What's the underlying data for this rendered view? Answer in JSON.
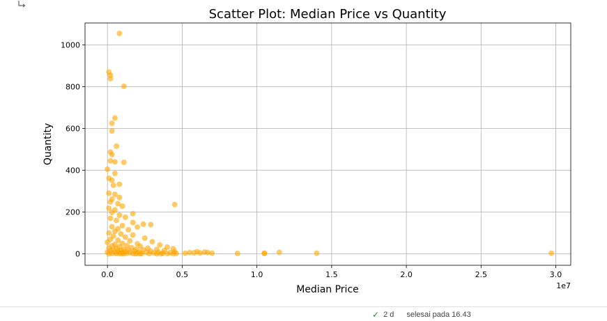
{
  "icons": {
    "output": "output-arrow-icon",
    "status": "check-icon"
  },
  "status": {
    "check": "✓",
    "duration": "2 d",
    "finished": "selesai pada 16.43"
  },
  "colors": {
    "point": "#FFA500",
    "grid": "#b0b0b0",
    "axis": "#000000"
  },
  "chart_data": {
    "type": "scatter",
    "title": "Scatter Plot: Median Price vs Quantity",
    "xlabel": "Median Price",
    "ylabel": "Quantity",
    "x_offset_text": "1e7",
    "xlim": [
      -0.15,
      3.1
    ],
    "ylim": [
      -55,
      1105
    ],
    "xticks": [
      0.0,
      0.5,
      1.0,
      1.5,
      2.0,
      2.5,
      3.0
    ],
    "xtick_labels": [
      "0.0",
      "0.5",
      "1.0",
      "1.5",
      "2.0",
      "2.5",
      "3.0"
    ],
    "yticks": [
      0,
      200,
      400,
      600,
      800,
      1000
    ],
    "ytick_labels": [
      "0",
      "200",
      "400",
      "600",
      "800",
      "1000"
    ],
    "grid": true,
    "alpha": 0.6,
    "points": [
      {
        "x": 0.08,
        "y": 1055
      },
      {
        "x": 0.01,
        "y": 870
      },
      {
        "x": 0.02,
        "y": 855
      },
      {
        "x": 0.02,
        "y": 838
      },
      {
        "x": 0.11,
        "y": 802
      },
      {
        "x": 0.05,
        "y": 650
      },
      {
        "x": 0.03,
        "y": 625
      },
      {
        "x": 0.03,
        "y": 588
      },
      {
        "x": 0.06,
        "y": 515
      },
      {
        "x": 0.02,
        "y": 487
      },
      {
        "x": 0.03,
        "y": 475
      },
      {
        "x": 0.02,
        "y": 445
      },
      {
        "x": 0.05,
        "y": 440
      },
      {
        "x": 0.11,
        "y": 438
      },
      {
        "x": 0.0,
        "y": 405
      },
      {
        "x": 0.05,
        "y": 385
      },
      {
        "x": 0.01,
        "y": 362
      },
      {
        "x": 0.03,
        "y": 352
      },
      {
        "x": 0.08,
        "y": 333
      },
      {
        "x": 0.04,
        "y": 328
      },
      {
        "x": 0.01,
        "y": 290
      },
      {
        "x": 0.05,
        "y": 285
      },
      {
        "x": 0.08,
        "y": 270
      },
      {
        "x": 0.03,
        "y": 262
      },
      {
        "x": 0.02,
        "y": 248
      },
      {
        "x": 0.07,
        "y": 240
      },
      {
        "x": 0.45,
        "y": 236
      },
      {
        "x": 0.1,
        "y": 228
      },
      {
        "x": 0.01,
        "y": 218
      },
      {
        "x": 0.05,
        "y": 210
      },
      {
        "x": 0.03,
        "y": 198
      },
      {
        "x": 0.17,
        "y": 192
      },
      {
        "x": 0.08,
        "y": 185
      },
      {
        "x": 0.12,
        "y": 175
      },
      {
        "x": 0.02,
        "y": 170
      },
      {
        "x": 0.06,
        "y": 160
      },
      {
        "x": 0.17,
        "y": 150
      },
      {
        "x": 0.24,
        "y": 142
      },
      {
        "x": 0.29,
        "y": 140
      },
      {
        "x": 0.1,
        "y": 135
      },
      {
        "x": 0.03,
        "y": 130
      },
      {
        "x": 0.2,
        "y": 128
      },
      {
        "x": 0.07,
        "y": 120
      },
      {
        "x": 0.14,
        "y": 115
      },
      {
        "x": 0.05,
        "y": 108
      },
      {
        "x": 0.01,
        "y": 100
      },
      {
        "x": 0.09,
        "y": 95
      },
      {
        "x": 0.17,
        "y": 90
      },
      {
        "x": 0.04,
        "y": 85
      },
      {
        "x": 0.12,
        "y": 80
      },
      {
        "x": 0.25,
        "y": 75
      },
      {
        "x": 0.02,
        "y": 70
      },
      {
        "x": 0.07,
        "y": 65
      },
      {
        "x": 0.15,
        "y": 62
      },
      {
        "x": 0.3,
        "y": 58
      },
      {
        "x": 0.0,
        "y": 55
      },
      {
        "x": 0.1,
        "y": 50
      },
      {
        "x": 0.2,
        "y": 48
      },
      {
        "x": 0.05,
        "y": 45
      },
      {
        "x": 0.35,
        "y": 42
      },
      {
        "x": 0.13,
        "y": 40
      },
      {
        "x": 0.03,
        "y": 38
      },
      {
        "x": 0.22,
        "y": 36
      },
      {
        "x": 0.08,
        "y": 34
      },
      {
        "x": 0.4,
        "y": 32
      },
      {
        "x": 0.16,
        "y": 30
      },
      {
        "x": 0.01,
        "y": 28
      },
      {
        "x": 0.27,
        "y": 27
      },
      {
        "x": 0.06,
        "y": 26
      },
      {
        "x": 0.44,
        "y": 24
      },
      {
        "x": 0.11,
        "y": 23
      },
      {
        "x": 0.19,
        "y": 22
      },
      {
        "x": 0.33,
        "y": 21
      },
      {
        "x": 0.04,
        "y": 20
      },
      {
        "x": 0.24,
        "y": 19
      },
      {
        "x": 0.14,
        "y": 18
      },
      {
        "x": 0.09,
        "y": 17
      },
      {
        "x": 0.38,
        "y": 16
      },
      {
        "x": 0.02,
        "y": 15
      },
      {
        "x": 0.18,
        "y": 14
      },
      {
        "x": 0.29,
        "y": 13
      },
      {
        "x": 0.07,
        "y": 12
      },
      {
        "x": 0.12,
        "y": 11
      },
      {
        "x": 0.45,
        "y": 10
      },
      {
        "x": 0.21,
        "y": 9
      },
      {
        "x": 0.0,
        "y": 8
      },
      {
        "x": 0.34,
        "y": 8
      },
      {
        "x": 0.1,
        "y": 7
      },
      {
        "x": 0.26,
        "y": 7
      },
      {
        "x": 0.15,
        "y": 6
      },
      {
        "x": 0.05,
        "y": 6
      },
      {
        "x": 0.42,
        "y": 5
      },
      {
        "x": 0.31,
        "y": 5
      },
      {
        "x": 0.2,
        "y": 4
      },
      {
        "x": 0.08,
        "y": 4
      },
      {
        "x": 0.37,
        "y": 3
      },
      {
        "x": 0.13,
        "y": 3
      },
      {
        "x": 0.03,
        "y": 2
      },
      {
        "x": 0.23,
        "y": 2
      },
      {
        "x": 0.46,
        "y": 2
      },
      {
        "x": 0.17,
        "y": 1
      },
      {
        "x": 0.28,
        "y": 1
      },
      {
        "x": 0.06,
        "y": 1
      },
      {
        "x": 0.4,
        "y": 1
      },
      {
        "x": 0.11,
        "y": 0
      },
      {
        "x": 0.33,
        "y": 0
      },
      {
        "x": 0.22,
        "y": 0
      },
      {
        "x": 0.01,
        "y": 0
      },
      {
        "x": 0.36,
        "y": 0
      },
      {
        "x": 0.44,
        "y": 0
      },
      {
        "x": 0.09,
        "y": 0
      },
      {
        "x": 0.19,
        "y": 0
      },
      {
        "x": 0.52,
        "y": 3
      },
      {
        "x": 0.58,
        "y": 5
      },
      {
        "x": 0.6,
        "y": 10
      },
      {
        "x": 0.62,
        "y": 4
      },
      {
        "x": 0.65,
        "y": 8
      },
      {
        "x": 0.7,
        "y": 3
      },
      {
        "x": 0.55,
        "y": 6
      },
      {
        "x": 0.67,
        "y": 6
      },
      {
        "x": 0.87,
        "y": 2
      },
      {
        "x": 1.05,
        "y": 2
      },
      {
        "x": 1.05,
        "y": 3
      },
      {
        "x": 1.15,
        "y": 7
      },
      {
        "x": 1.4,
        "y": 3
      },
      {
        "x": 2.97,
        "y": 3
      }
    ]
  }
}
